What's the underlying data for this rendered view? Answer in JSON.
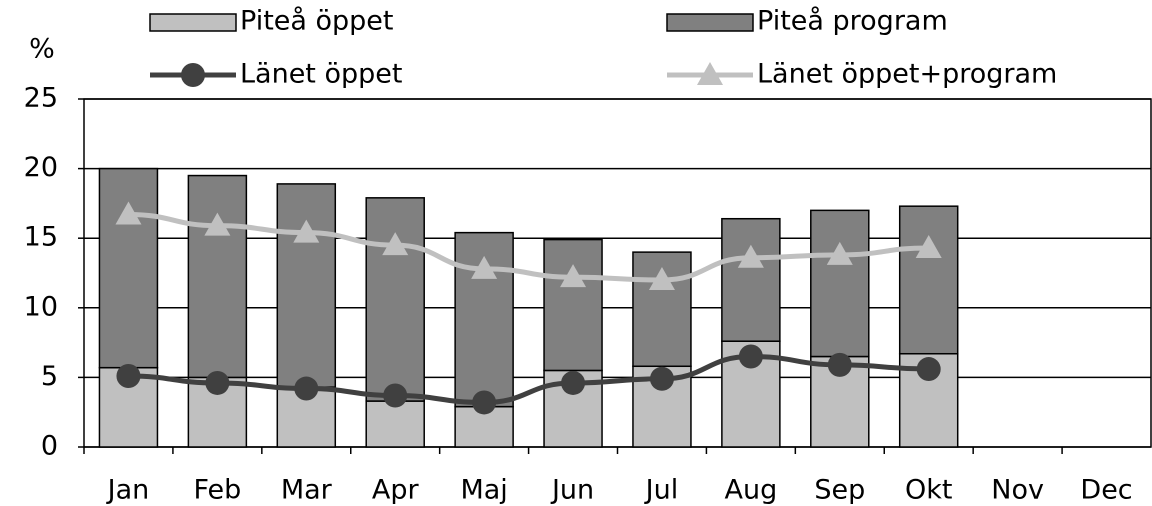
{
  "chart_data": {
    "type": "bar",
    "y_label": "%",
    "categories": [
      "Jan",
      "Feb",
      "Mar",
      "Apr",
      "Maj",
      "Jun",
      "Jul",
      "Aug",
      "Sep",
      "Okt",
      "Nov",
      "Dec"
    ],
    "ylim": [
      0,
      25
    ],
    "yticks": [
      0,
      5,
      10,
      15,
      20,
      25
    ],
    "grid": true,
    "stacked": true,
    "series": [
      {
        "name": "Piteå öppet",
        "type": "bar",
        "color": "#c0c0c0",
        "values": [
          5.7,
          5.0,
          4.3,
          3.3,
          2.9,
          5.5,
          5.8,
          7.6,
          6.5,
          6.7,
          null,
          null
        ]
      },
      {
        "name": "Piteå program",
        "type": "bar",
        "color": "#808080",
        "values": [
          14.3,
          14.5,
          14.6,
          14.6,
          12.5,
          9.4,
          8.2,
          8.8,
          10.5,
          10.6,
          null,
          null
        ]
      },
      {
        "name": "Länet öppet",
        "type": "line",
        "marker": "circle",
        "color": "#404040",
        "values": [
          5.1,
          4.6,
          4.2,
          3.7,
          3.2,
          4.6,
          4.9,
          6.5,
          5.9,
          5.6,
          null,
          null
        ]
      },
      {
        "name": "Länet öppet+program",
        "type": "line",
        "marker": "triangle",
        "color": "#c0c0c0",
        "values": [
          16.7,
          15.9,
          15.4,
          14.5,
          12.8,
          12.2,
          12.0,
          13.6,
          13.8,
          14.3,
          null,
          null
        ]
      }
    ]
  }
}
